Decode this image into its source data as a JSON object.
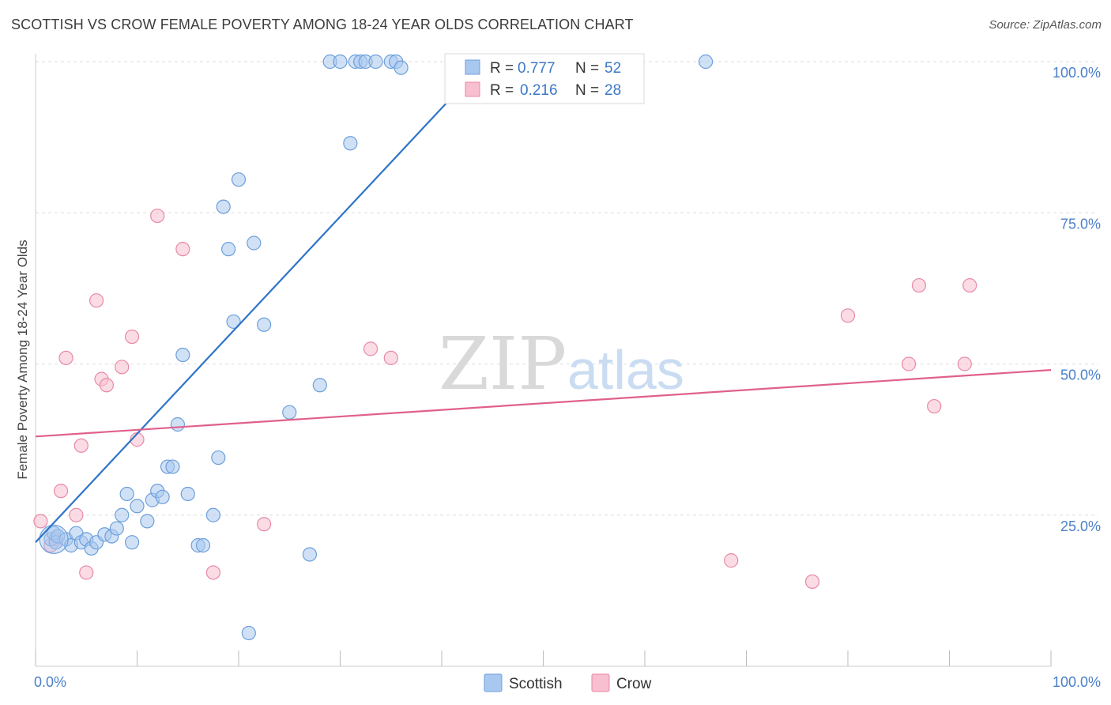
{
  "title": "SCOTTISH VS CROW FEMALE POVERTY AMONG 18-24 YEAR OLDS CORRELATION CHART",
  "source": "Source: ZipAtlas.com",
  "watermark": {
    "zip": "ZIP",
    "atlas": "atlas"
  },
  "colors": {
    "scottish_fill": "#a9c8ef",
    "scottish_stroke": "#6c9fdb",
    "scottish_line": "#2f74c9",
    "crow_fill": "#f7bfd0",
    "crow_stroke": "#e889a7",
    "crow_line": "#e0608c",
    "axis_text": "#4a7fc8",
    "grid": "#dddddd"
  },
  "legend": {
    "items": [
      {
        "r_label": "R =",
        "r_value": "0.777",
        "n_label": "N =",
        "n_value": "52"
      },
      {
        "r_label": "R =",
        "r_value": "0.216",
        "n_label": "N =",
        "n_value": "28"
      }
    ]
  },
  "bottom_legend": [
    "Scottish",
    "Crow"
  ],
  "chart_data": {
    "type": "scatter",
    "title": "SCOTTISH VS CROW FEMALE POVERTY AMONG 18-24 YEAR OLDS CORRELATION CHART",
    "xlabel": "",
    "ylabel": "Female Poverty Among 18-24 Year Olds",
    "xlim": [
      0,
      100
    ],
    "ylim": [
      0,
      100
    ],
    "x_tick_labels": [
      "0.0%",
      "100.0%"
    ],
    "y_ticks": [
      25,
      50,
      75,
      100
    ],
    "y_tick_labels": [
      "25.0%",
      "50.0%",
      "75.0%",
      "100.0%"
    ],
    "grid": true,
    "series": [
      {
        "name": "Scottish",
        "points": [
          [
            1.5,
            21.0
          ],
          [
            1.8,
            22.0
          ],
          [
            2.0,
            20.5
          ],
          [
            2.2,
            21.5
          ],
          [
            3.0,
            21.0
          ],
          [
            3.5,
            20.0
          ],
          [
            4.0,
            22.0
          ],
          [
            4.5,
            20.5
          ],
          [
            5.0,
            21.0
          ],
          [
            5.5,
            19.5
          ],
          [
            6.0,
            20.5
          ],
          [
            6.8,
            21.8
          ],
          [
            7.5,
            21.5
          ],
          [
            8.0,
            22.8
          ],
          [
            8.5,
            25.0
          ],
          [
            9.0,
            28.5
          ],
          [
            9.5,
            20.5
          ],
          [
            10.0,
            26.5
          ],
          [
            11.0,
            24.0
          ],
          [
            11.5,
            27.5
          ],
          [
            12.0,
            29.0
          ],
          [
            12.5,
            28.0
          ],
          [
            13.0,
            33.0
          ],
          [
            13.5,
            33.0
          ],
          [
            14.5,
            51.5
          ],
          [
            15.0,
            28.5
          ],
          [
            16.0,
            20.0
          ],
          [
            16.5,
            20.0
          ],
          [
            17.5,
            25.0
          ],
          [
            18.0,
            34.5
          ],
          [
            18.5,
            76.0
          ],
          [
            19.0,
            69.0
          ],
          [
            19.5,
            57.0
          ],
          [
            20.0,
            80.5
          ],
          [
            21.5,
            70.0
          ],
          [
            22.5,
            56.5
          ],
          [
            25.0,
            42.0
          ],
          [
            27.0,
            18.5
          ],
          [
            28.0,
            46.5
          ],
          [
            29.0,
            100.0
          ],
          [
            30.0,
            100.0
          ],
          [
            31.0,
            86.5
          ],
          [
            31.5,
            100.0
          ],
          [
            32.0,
            100.0
          ],
          [
            32.5,
            100.0
          ],
          [
            33.5,
            100.0
          ],
          [
            35.0,
            100.0
          ],
          [
            35.5,
            100.0
          ],
          [
            36.0,
            99.0
          ],
          [
            21.0,
            5.5
          ],
          [
            14.0,
            40.0
          ],
          [
            66.0,
            100.0
          ]
        ],
        "trend": {
          "x": [
            0,
            44
          ],
          "y": [
            20.5,
            99.5
          ]
        }
      },
      {
        "name": "Crow",
        "points": [
          [
            0.5,
            24.0
          ],
          [
            1.5,
            20.0
          ],
          [
            2.0,
            21.0
          ],
          [
            2.5,
            29.0
          ],
          [
            3.0,
            51.0
          ],
          [
            4.0,
            25.0
          ],
          [
            4.5,
            36.5
          ],
          [
            5.0,
            15.5
          ],
          [
            6.0,
            60.5
          ],
          [
            6.5,
            47.5
          ],
          [
            7.0,
            46.5
          ],
          [
            8.5,
            49.5
          ],
          [
            9.5,
            54.5
          ],
          [
            10.0,
            37.5
          ],
          [
            12.0,
            74.5
          ],
          [
            14.5,
            69.0
          ],
          [
            17.5,
            15.5
          ],
          [
            22.5,
            23.5
          ],
          [
            33.0,
            52.5
          ],
          [
            35.0,
            51.0
          ],
          [
            68.5,
            17.5
          ],
          [
            76.5,
            14.0
          ],
          [
            80.0,
            58.0
          ],
          [
            86.0,
            50.0
          ],
          [
            87.0,
            63.0
          ],
          [
            88.5,
            43.0
          ],
          [
            91.5,
            50.0
          ],
          [
            92.0,
            63.0
          ]
        ],
        "trend": {
          "x": [
            0,
            100
          ],
          "y": [
            38.0,
            49.0
          ]
        }
      }
    ]
  }
}
